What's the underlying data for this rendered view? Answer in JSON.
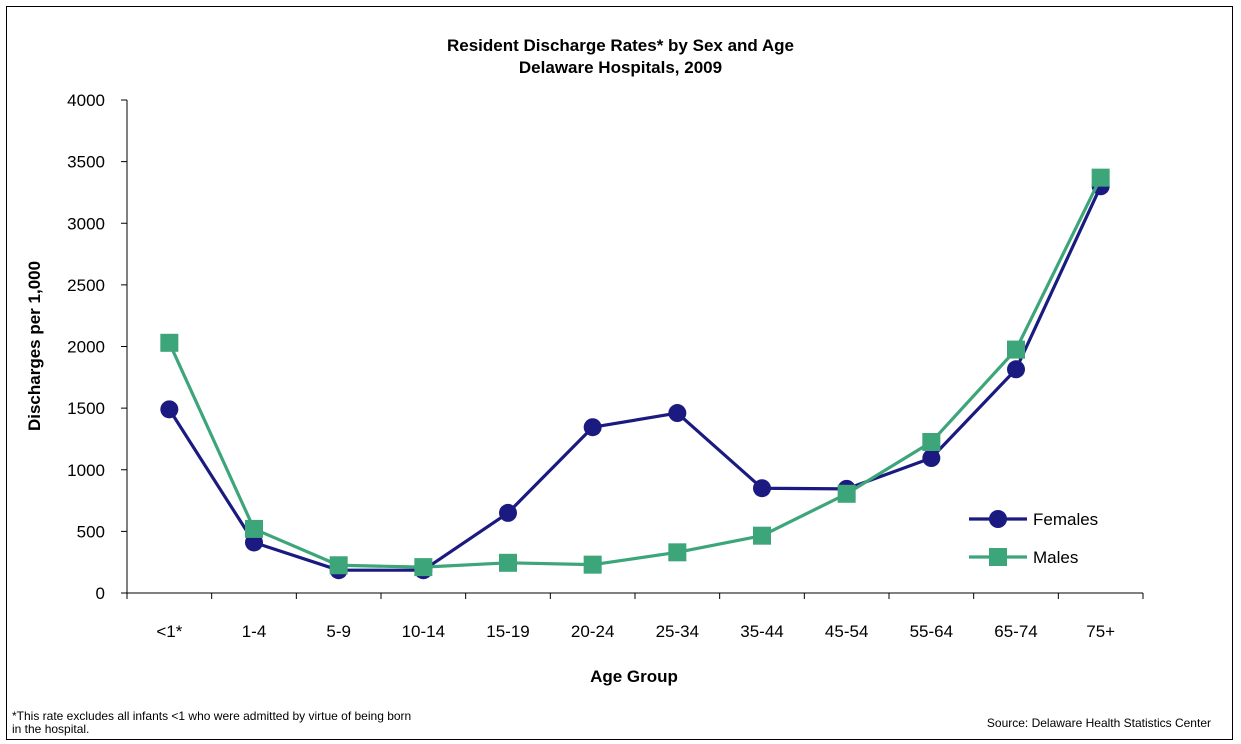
{
  "chart_data": {
    "type": "line",
    "title": "Resident Discharge Rates* by Sex and Age",
    "subtitle": "Delaware Hospitals, 2009",
    "xlabel": "Age Group",
    "ylabel": "Discharges per 1,000",
    "ylim": [
      0,
      4000
    ],
    "yticks": [
      0,
      500,
      1000,
      1500,
      2000,
      2500,
      3000,
      3500,
      4000
    ],
    "categories": [
      "<1*",
      "1-4",
      "5-9",
      "10-14",
      "15-19",
      "20-24",
      "25-34",
      "35-44",
      "45-54",
      "55-64",
      "65-74",
      "75+"
    ],
    "series": [
      {
        "name": "Females",
        "color": "#1a1a80",
        "marker": "circle",
        "values": [
          1490,
          410,
          185,
          185,
          650,
          1345,
          1460,
          850,
          845,
          1095,
          1815,
          3300
        ]
      },
      {
        "name": "Males",
        "color": "#3da57a",
        "marker": "square",
        "values": [
          2030,
          520,
          225,
          210,
          245,
          230,
          330,
          465,
          805,
          1225,
          1975,
          3370
        ]
      }
    ],
    "legend_position": "right",
    "grid": false
  },
  "footnote": "*This rate excludes all infants <1 who were admitted by virtue of being born in the hospital.",
  "source": "Source:  Delaware Health Statistics Center"
}
